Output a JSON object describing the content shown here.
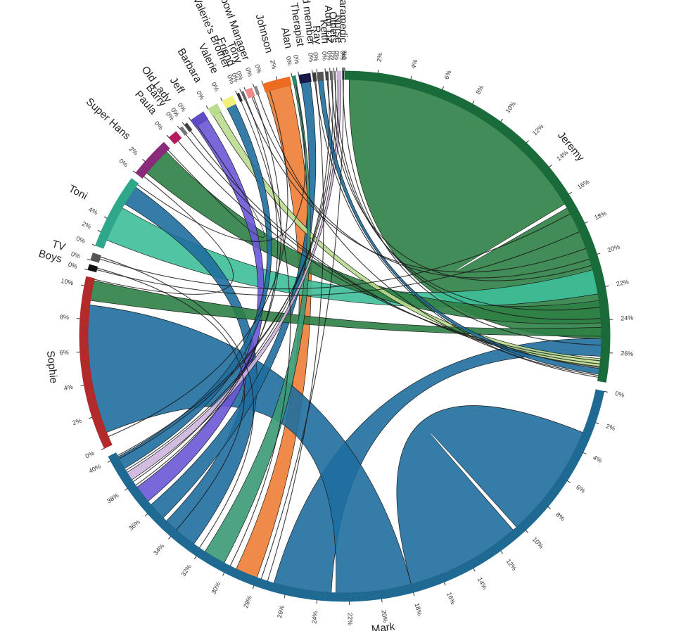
{
  "diagram": {
    "type": "chord",
    "groups": [
      {
        "id": "jeremy",
        "name": "Jeremy",
        "color": "#1a6b3a",
        "ticks": [
          "0%",
          "2%",
          "4%",
          "6%",
          "8%",
          "10%",
          "12%",
          "14%",
          "16%",
          "18%",
          "20%",
          "22%",
          "24%",
          "26%"
        ]
      },
      {
        "id": "mark",
        "name": "Mark",
        "color": "#1f6a93",
        "ticks": [
          "0%",
          "2%",
          "4%",
          "6%",
          "8%",
          "10%",
          "12%",
          "14%",
          "16%",
          "18%",
          "20%",
          "22%",
          "24%",
          "26%",
          "28%",
          "30%",
          "32%",
          "34%",
          "36%",
          "38%",
          "40%"
        ]
      },
      {
        "id": "sophie",
        "name": "Sophie",
        "color": "#b22a2a",
        "ticks": [
          "0%",
          "2%",
          "4%",
          "6%",
          "8%",
          "10%"
        ]
      },
      {
        "id": "boys",
        "name": "Boys",
        "color": "#111111",
        "ticks": [
          "0%"
        ]
      },
      {
        "id": "tv",
        "name": "TV",
        "color": "#555555",
        "ticks": [
          "0%"
        ]
      },
      {
        "id": "toni",
        "name": "Toni",
        "color": "#2ea78a",
        "ticks": [
          "0%",
          "2%",
          "4%"
        ]
      },
      {
        "id": "superhans",
        "name": "Super Hans",
        "color": "#8a2a7a",
        "ticks": [
          "0%",
          "2%"
        ]
      },
      {
        "id": "paula",
        "name": "Paula",
        "color": "#b5195e",
        "ticks": [
          "0%"
        ]
      },
      {
        "id": "barry",
        "name": "Barry",
        "color": "#777777",
        "ticks": [
          "0%"
        ]
      },
      {
        "id": "oldlady",
        "name": "Old Lady",
        "color": "#444444",
        "ticks": [
          "0%"
        ]
      },
      {
        "id": "jeff",
        "name": "Jeff",
        "color": "#5f4bc4",
        "ticks": [
          "0%"
        ]
      },
      {
        "id": "barbara",
        "name": "Barbara",
        "color": "#b9dc8f",
        "ticks": [
          "0%"
        ]
      },
      {
        "id": "valerie",
        "name": "Valerie",
        "color": "#f1f07a",
        "ticks": [
          "0%"
        ]
      },
      {
        "id": "valeriesbrother",
        "name": "Valerie's Brother",
        "color": "#2e2e2e",
        "ticks": [
          "0%"
        ]
      },
      {
        "id": "friend",
        "name": "Friend",
        "color": "#666666",
        "ticks": [
          "0%"
        ]
      },
      {
        "id": "tony",
        "name": "Tony",
        "color": "#f08a8a",
        "ticks": [
          "0%"
        ]
      },
      {
        "id": "lazerbowl",
        "name": "Lazerbowl Manager",
        "color": "#888888",
        "ticks": [
          "0%"
        ]
      },
      {
        "id": "johnson",
        "name": "Johnson",
        "color": "#ee6b22",
        "ticks": [
          "0%",
          "2%"
        ]
      },
      {
        "id": "alan",
        "name": "Alan",
        "color": "#2f8a6a",
        "ticks": [
          "0%"
        ]
      },
      {
        "id": "therapist",
        "name": "Therapist",
        "color": "#1a1a4a",
        "ticks": [
          "0%"
        ]
      },
      {
        "id": "bandmember",
        "name": "nd member",
        "color": "#3a3a3a",
        "ticks": [
          "0%"
        ]
      },
      {
        "id": "ray",
        "name": "Ray",
        "color": "#555555",
        "ticks": [
          "0%"
        ]
      },
      {
        "id": "keith",
        "name": "Keith",
        "color": "#444444",
        "ticks": [
          "0%"
        ]
      },
      {
        "id": "auntliz",
        "name": "Aunt Liz",
        "color": "#666666",
        "ticks": [
          "0%"
        ]
      },
      {
        "id": "others",
        "name": "Others",
        "color": "#777777",
        "ticks": [
          "0%"
        ]
      },
      {
        "id": "nurse",
        "name": "Nurse",
        "color": "#cdb6dd",
        "ticks": [
          "0%"
        ]
      },
      {
        "id": "paramedic",
        "name": "aramedic",
        "color": "#2a2a2a",
        "ticks": [
          "0%",
          "%0"
        ]
      }
    ],
    "arcs": {
      "jeremy": [
        0.0,
        100.0
      ],
      "mark": [
        102.0,
        243.0
      ],
      "sophie": [
        245.0,
        283.0
      ],
      "boys": [
        284.5,
        285.7
      ],
      "tv": [
        286.7,
        288.3
      ],
      "toni": [
        290.0,
        306.5
      ],
      "superhans": [
        308.0,
        317.0
      ],
      "paula": [
        318.5,
        320.5
      ],
      "barry": [
        321.5,
        322.2
      ],
      "oldlady": [
        322.8,
        323.5
      ],
      "jeff": [
        324.5,
        327.8
      ],
      "barbara": [
        329.0,
        331.2
      ],
      "valerie": [
        332.5,
        335.0
      ],
      "valeriesbrother": [
        336.0,
        336.5
      ],
      "friend": [
        337.0,
        337.5
      ],
      "tony": [
        338.0,
        339.5
      ],
      "lazerbowl": [
        340.0,
        340.6
      ],
      "johnson": [
        342.0,
        348.0
      ],
      "alan": [
        348.5,
        349.3
      ],
      "therapist": [
        350.0,
        352.5
      ],
      "bandmember": [
        353.0,
        353.7
      ],
      "ray": [
        354.0,
        355.3
      ],
      "keith": [
        355.8,
        356.4
      ],
      "auntliz": [
        356.8,
        357.3
      ],
      "others": [
        357.6,
        358.0
      ],
      "nurse": [
        358.3,
        359.2
      ],
      "paramedic": [
        359.5,
        359.8
      ]
    },
    "chords": [
      {
        "from": "jeremy",
        "s": [
          1.0,
          59.0
        ],
        "to": "jeremy",
        "t": [
          60.0,
          90.5
        ],
        "color": "#2e8045"
      },
      {
        "from": "mark",
        "s": [
          112.0,
          138.0
        ],
        "to": "mark",
        "t": [
          139.0,
          165.0
        ],
        "color": "#1f6e9e"
      },
      {
        "from": "jeremy",
        "s": [
          90.5,
          94.5
        ],
        "to": "mark",
        "t": [
          183.0,
          196.0
        ],
        "color": "#1f6e9e"
      },
      {
        "from": "mark",
        "s": [
          200.0,
          205.0
        ],
        "to": "johnson",
        "t": [
          342.2,
          347.8
        ],
        "color": "#ee7d35"
      },
      {
        "from": "sophie",
        "s": [
          248.0,
          277.0
        ],
        "to": "mark",
        "t": [
          165.0,
          182.0
        ],
        "color": "#1f6e9e"
      },
      {
        "from": "toni",
        "s": [
          292.0,
          300.0
        ],
        "to": "jeremy",
        "t": [
          75.0,
          80.5
        ],
        "color": "#3ebf99"
      },
      {
        "from": "superhans",
        "s": [
          309.5,
          316.0
        ],
        "to": "jeremy",
        "t": [
          82.0,
          87.0
        ],
        "color": "#2e8045"
      },
      {
        "from": "toni",
        "s": [
          301.0,
          305.5
        ],
        "to": "mark",
        "t": [
          216.0,
          224.0
        ],
        "color": "#1f6e9e"
      },
      {
        "from": "mark",
        "s": [
          230.0,
          234.0
        ],
        "to": "jeff",
        "t": [
          324.6,
          327.7
        ],
        "color": "#6a58d6"
      },
      {
        "from": "mark",
        "s": [
          225.0,
          229.0
        ],
        "to": "therapist",
        "t": [
          350.2,
          352.3
        ],
        "color": "#1f6e9e"
      },
      {
        "from": "jeremy",
        "s": [
          95.0,
          97.0
        ],
        "to": "barbara",
        "t": [
          329.2,
          331.0
        ],
        "color": "#b9dc8f"
      },
      {
        "from": "jeremy",
        "s": [
          88.0,
          90.0
        ],
        "to": "sophie",
        "t": [
          278.0,
          282.5
        ],
        "color": "#2e8045"
      },
      {
        "from": "mark",
        "s": [
          208.0,
          213.0
        ],
        "to": "alan",
        "t": [
          348.6,
          349.2
        ],
        "color": "#3a9a76"
      },
      {
        "from": "mark",
        "s": [
          236.0,
          238.0
        ],
        "to": "nurse",
        "t": [
          358.4,
          359.1
        ],
        "color": "#cdb6dd"
      },
      {
        "from": "mark",
        "s": [
          239.0,
          242.0
        ],
        "to": "valerie",
        "t": [
          332.7,
          334.8
        ],
        "color": "#1f6e9e"
      },
      {
        "from": "jeremy",
        "s": [
          97.2,
          98.5
        ],
        "to": "ray",
        "t": [
          354.1,
          355.2
        ],
        "color": "#1f6e9e"
      }
    ],
    "threads": [
      [
        "jeremy",
        61.5,
        "tv",
        287.5
      ],
      [
        "jeremy",
        66.0,
        "boys",
        285.0
      ],
      [
        "jeremy",
        70.0,
        "friend",
        337.2
      ],
      [
        "jeremy",
        72.5,
        "tony",
        338.8
      ],
      [
        "jeremy",
        74.0,
        "keith",
        356.1
      ],
      [
        "jeremy",
        83.5,
        "auntliz",
        357.0
      ],
      [
        "jeremy",
        86.0,
        "others",
        357.8
      ],
      [
        "jeremy",
        92.0,
        "paramedic",
        359.6
      ],
      [
        "jeremy",
        95.5,
        "paula",
        319.5
      ],
      [
        "jeremy",
        96.2,
        "barry",
        321.8
      ],
      [
        "jeremy",
        96.8,
        "oldlady",
        323.1
      ],
      [
        "jeremy",
        98.8,
        "lazerbowl",
        340.3
      ],
      [
        "jeremy",
        99.2,
        "bandmember",
        353.3
      ],
      [
        "mark",
        206.5,
        "valeriesbrother",
        336.2
      ],
      [
        "mark",
        214.5,
        "tv",
        288.0
      ],
      [
        "mark",
        221.0,
        "boys",
        285.4
      ],
      [
        "mark",
        234.5,
        "friend",
        337.4
      ],
      [
        "mark",
        235.5,
        "tony",
        339.2
      ],
      [
        "mark",
        238.5,
        "keith",
        356.3
      ],
      [
        "mark",
        241.5,
        "auntliz",
        357.2
      ],
      [
        "mark",
        242.3,
        "others",
        357.9
      ],
      [
        "mark",
        199.0,
        "paramedic",
        359.7
      ],
      [
        "mark",
        197.5,
        "bandmember",
        353.5
      ],
      [
        "sophie",
        247.0,
        "johnson",
        343.0
      ],
      [
        "sophie",
        282.8,
        "superhans",
        308.5
      ],
      [
        "toni",
        306.2,
        "alan",
        349.0
      ],
      [
        "superhans",
        316.5,
        "jeff",
        325.0
      ]
    ]
  }
}
